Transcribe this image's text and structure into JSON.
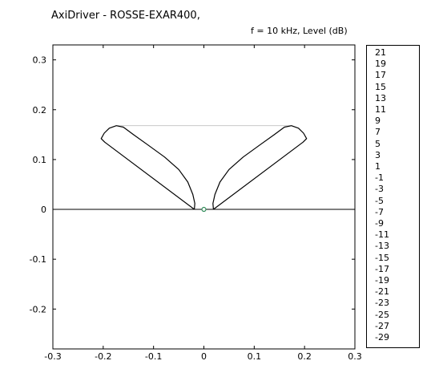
{
  "window": {
    "title": "AxiDriver - ROSSE-EXAR400,"
  },
  "plot": {
    "subtitle": "f = 10 kHz, Level  (dB)"
  },
  "colors": {
    "axis": "#000000",
    "curve": "#000000",
    "guide": "#c8c8c8",
    "origin_marker": "#2e8b57"
  },
  "chart_data": {
    "type": "line",
    "title": "AxiDriver - ROSSE-EXAR400,",
    "subtitle": "f = 10 kHz, Level  (dB)",
    "xlim": [
      -0.3,
      0.3
    ],
    "ylim": [
      -0.28,
      0.33
    ],
    "xticks": [
      -0.3,
      -0.2,
      -0.1,
      0,
      0.1,
      0.2,
      0.3
    ],
    "xtick_labels": [
      "-0.3",
      "-0.2",
      "-0.1",
      "0",
      "0.1",
      "0.2",
      "0.3"
    ],
    "yticks": [
      0.3,
      0.2,
      0.1,
      0,
      -0.1,
      -0.2
    ],
    "ytick_labels": [
      "0.3",
      "0.2",
      "0.1",
      "0",
      "-0.1",
      "-0.2"
    ],
    "series": [
      {
        "values": [
          [
            -0.019,
            0
          ],
          [
            -0.018,
            0.012
          ],
          [
            -0.022,
            0.03
          ],
          [
            -0.032,
            0.055
          ],
          [
            -0.05,
            0.08
          ],
          [
            -0.078,
            0.105
          ],
          [
            -0.112,
            0.13
          ],
          [
            -0.14,
            0.15
          ],
          [
            -0.16,
            0.165
          ],
          [
            -0.174,
            0.168
          ],
          [
            -0.188,
            0.163
          ],
          [
            -0.198,
            0.153
          ],
          [
            -0.204,
            0.142
          ],
          [
            -0.197,
            0.135
          ],
          [
            -0.019,
            0
          ]
        ]
      },
      {
        "values": [
          [
            0.019,
            0
          ],
          [
            0.018,
            0.012
          ],
          [
            0.022,
            0.03
          ],
          [
            0.032,
            0.055
          ],
          [
            0.05,
            0.08
          ],
          [
            0.078,
            0.105
          ],
          [
            0.112,
            0.13
          ],
          [
            0.14,
            0.15
          ],
          [
            0.16,
            0.165
          ],
          [
            0.174,
            0.168
          ],
          [
            0.188,
            0.163
          ],
          [
            0.198,
            0.153
          ],
          [
            0.204,
            0.142
          ],
          [
            0.197,
            0.135
          ],
          [
            0.019,
            0
          ]
        ]
      }
    ],
    "guide_line_y": 0.168,
    "origin_marker": [
      0,
      0
    ]
  },
  "scale": {
    "labels": [
      "21",
      "19",
      "17",
      "15",
      "13",
      "11",
      "9",
      "7",
      "5",
      "3",
      "1",
      "-1",
      "-3",
      "-5",
      "-7",
      "-9",
      "-11",
      "-13",
      "-15",
      "-17",
      "-19",
      "-21",
      "-23",
      "-25",
      "-27",
      "-29"
    ]
  }
}
